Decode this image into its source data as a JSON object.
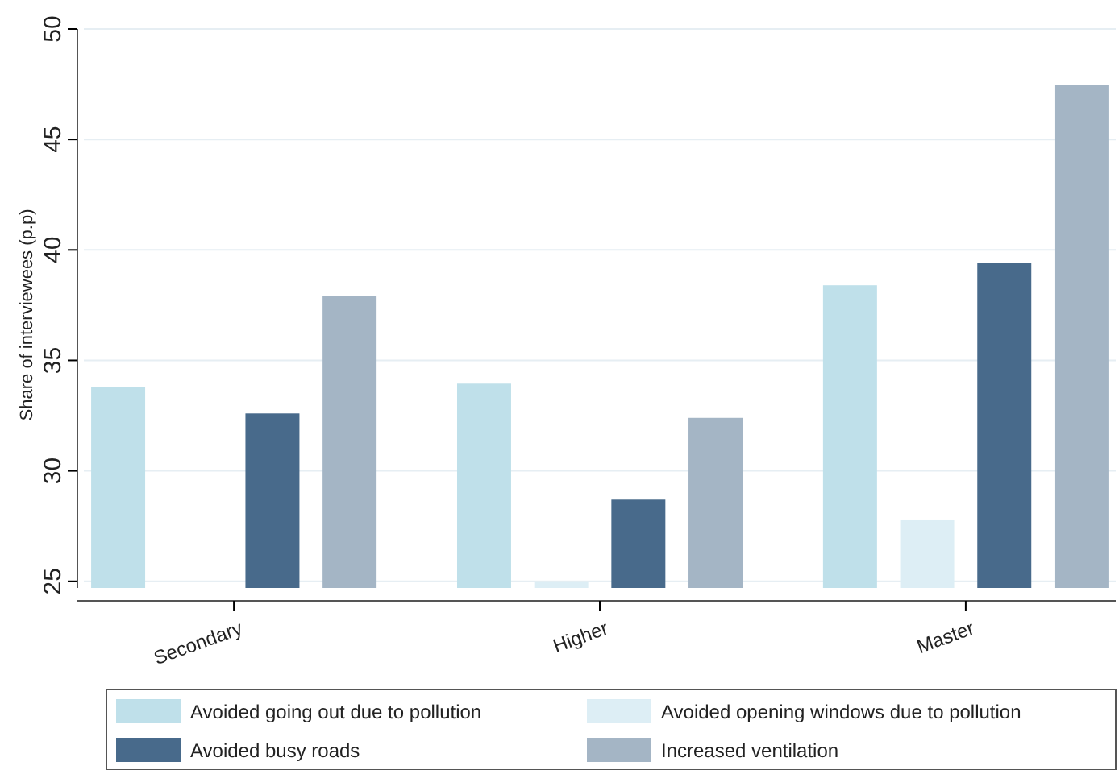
{
  "chart_data": {
    "type": "bar",
    "ylabel": "Share of interviewees (p.p)",
    "categories": [
      "Secondary",
      "Higher",
      "Master"
    ],
    "series": [
      {
        "name": "Avoided going out due to pollution",
        "color": "#bfe0ea",
        "values": [
          33.8,
          33.95,
          38.4
        ]
      },
      {
        "name": "Avoided opening windows due to pollution",
        "color": "#ddeef5",
        "values": [
          null,
          25.0,
          27.8
        ]
      },
      {
        "name": "Avoided busy roads",
        "color": "#486a8b",
        "values": [
          32.6,
          28.7,
          39.4
        ]
      },
      {
        "name": "Increased ventilation",
        "color": "#a4b5c5",
        "values": [
          37.9,
          32.4,
          47.45
        ]
      }
    ],
    "ylim": [
      24.7,
      50
    ],
    "yticks": [
      25,
      30,
      35,
      40,
      45,
      50
    ],
    "grid": "y",
    "legend": "bottom"
  }
}
